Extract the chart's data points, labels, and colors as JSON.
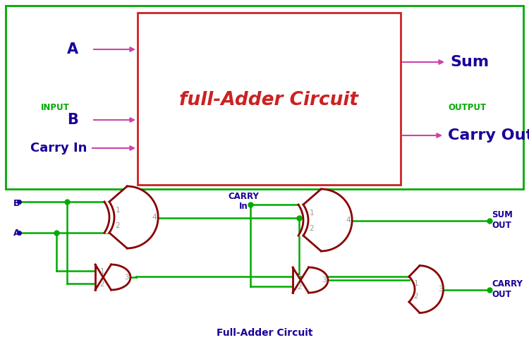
{
  "bg_color": "#ffffff",
  "outer_box_color": "#00aa00",
  "inner_box_color": "#cc2222",
  "title_text": "full-Adder Circuit",
  "title_color": "#cc2222",
  "input_label_color": "#00aa00",
  "output_label_color": "#00aa00",
  "input_text": "INPUT",
  "output_text": "OUTPUT",
  "signal_color": "#cc44aa",
  "signal_text_color": "#1a0099",
  "gate_color": "#880000",
  "wire_color": "#00aa00",
  "node_color": "#00aa00",
  "label_color": "#1a0099",
  "bottom_title": "Full-Adder Circuit",
  "bottom_title_color": "#1a0099",
  "pin_label_color": "#999999"
}
